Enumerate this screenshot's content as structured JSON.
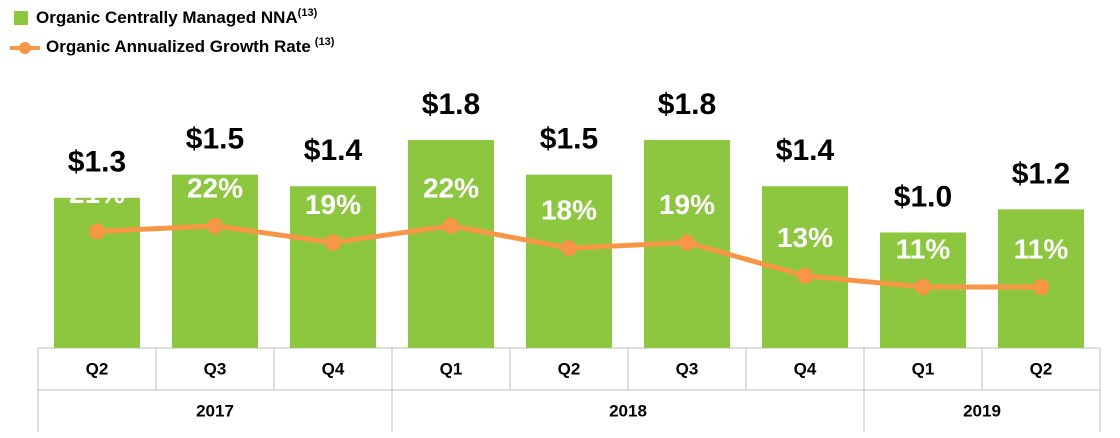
{
  "chart_data": {
    "type": "bar_line",
    "groups": [
      {
        "label": "2017",
        "categories": [
          "Q2",
          "Q3",
          "Q4"
        ]
      },
      {
        "label": "2018",
        "categories": [
          "Q1",
          "Q2",
          "Q3",
          "Q4"
        ]
      },
      {
        "label": "2019",
        "categories": [
          "Q1",
          "Q2"
        ]
      }
    ],
    "series": [
      {
        "name": "Organic Centrally Managed NNA",
        "footnote": "(13)",
        "type": "bar",
        "color": "#8dc63f",
        "values": [
          1.3,
          1.5,
          1.4,
          1.8,
          1.5,
          1.8,
          1.4,
          1.0,
          1.2
        ],
        "value_labels": [
          "$1.3",
          "$1.5",
          "$1.4",
          "$1.8",
          "$1.5",
          "$1.8",
          "$1.4",
          "$1.0",
          "$1.2"
        ]
      },
      {
        "name": "Organic Annualized Growth Rate",
        "footnote": "(13)",
        "type": "line",
        "color": "#f79646",
        "values": [
          21,
          22,
          19,
          22,
          18,
          19,
          13,
          11,
          11
        ],
        "value_labels": [
          "21%",
          "22%",
          "19%",
          "22%",
          "18%",
          "19%",
          "13%",
          "11%",
          "11%"
        ]
      }
    ]
  }
}
